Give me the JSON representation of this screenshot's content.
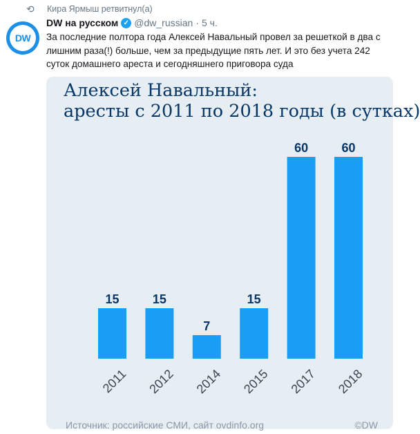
{
  "retweet": {
    "text": "Кира Ярмыш ретвитнул(а)",
    "icon": "retweet-icon"
  },
  "tweet": {
    "avatar_text": "DW",
    "display_name": "DW на русском",
    "handle": "@dw_russian",
    "separator": "·",
    "time": "5 ч.",
    "text": "За последние полтора года Алексей Навальный провел за решеткой в два с лишним раза(!) больше, чем за предыдущие пять лет. И это без учета 242 суток домашнего ареста и сегодняшнего приговора суда"
  },
  "media": {
    "title_line1": "Алексей Навальный:",
    "title_line2": "аресты с 2011 по 2018 годы (в сутках)",
    "source": "Источник: российские СМИ, сайт ovdinfo.org",
    "copyright": "©DW"
  },
  "chart_data": {
    "type": "bar",
    "title": "Алексей Навальный: аресты с 2011 по 2018 годы (в сутках)",
    "categories": [
      "2011",
      "2012",
      "2014",
      "2015",
      "2017",
      "2018"
    ],
    "values": [
      15,
      15,
      7,
      15,
      60,
      60
    ],
    "ylim": [
      0,
      60
    ],
    "grid": false,
    "bar_color": "#1a9ef5"
  },
  "colors": {
    "accent": "#1da1f2",
    "title": "#073766",
    "bar": "#1a9ef5",
    "background": "#e6edf3"
  }
}
